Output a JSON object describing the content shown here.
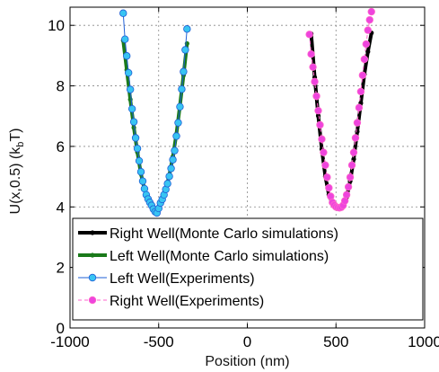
{
  "chart_data": {
    "type": "scatter",
    "xlabel": "Position (nm)",
    "ylabel": "U(x,0.5) (k",
    "ylabel_sub": "b",
    "ylabel_suffix": "T)",
    "xlim": [
      -1000,
      1000
    ],
    "ylim": [
      0,
      10.6
    ],
    "xticks": [
      -1000,
      -500,
      0,
      500,
      1000
    ],
    "xtick_labels": [
      "-1000",
      "-500",
      "0",
      "500",
      "1000"
    ],
    "yticks": [
      0,
      2,
      4,
      6,
      8,
      10
    ],
    "ytick_labels": [
      "0",
      "2",
      "4",
      "6",
      "8",
      "10"
    ],
    "grid": true,
    "legend_position": "bottom-center",
    "series": [
      {
        "name": "Right Well(Monte Carlo simulations)",
        "color": "#000000",
        "style": "line-dot",
        "x": [
          360,
          380,
          400,
          420,
          440,
          460,
          480,
          500,
          520,
          540,
          560,
          580,
          600,
          620,
          640,
          660,
          680,
          700
        ],
        "y": [
          9.72,
          8.28,
          7.01,
          5.91,
          5.01,
          4.4,
          4.12,
          4.0,
          3.95,
          4.01,
          4.32,
          4.85,
          5.58,
          6.49,
          7.43,
          8.38,
          9.13,
          9.75
        ]
      },
      {
        "name": "Left Well(Monte Carlo simulations)",
        "color": "#1a7a1a",
        "style": "line-dot",
        "x": [
          -700,
          -680,
          -660,
          -640,
          -620,
          -600,
          -580,
          -560,
          -540,
          -520,
          -500,
          -480,
          -460,
          -440,
          -420,
          -400,
          -380,
          -360,
          -340
        ],
        "y": [
          9.5,
          8.53,
          7.55,
          6.62,
          5.81,
          5.09,
          4.58,
          4.25,
          4.05,
          3.93,
          4.0,
          4.23,
          4.57,
          5.05,
          5.66,
          6.41,
          7.35,
          8.35,
          9.4
        ]
      },
      {
        "name": "Left Well(Experiments)",
        "color": "#1f5fd6",
        "marker_fill": "#38c4f2",
        "style": "line-circle",
        "x": [
          -700,
          -690,
          -680,
          -670,
          -660,
          -650,
          -640,
          -630,
          -620,
          -610,
          -600,
          -590,
          -580,
          -570,
          -560,
          -550,
          -540,
          -530,
          -520,
          -510,
          -500,
          -490,
          -480,
          -470,
          -460,
          -450,
          -440,
          -430,
          -420,
          -410,
          -400,
          -390,
          -380,
          -370,
          -360,
          -350,
          -340
        ],
        "y": [
          10.4,
          9.54,
          8.99,
          8.43,
          7.88,
          7.24,
          6.81,
          6.28,
          5.93,
          5.52,
          5.16,
          4.85,
          4.6,
          4.4,
          4.26,
          4.15,
          4.05,
          3.93,
          3.84,
          3.8,
          3.95,
          4.13,
          4.25,
          4.4,
          4.58,
          4.77,
          5.01,
          5.27,
          5.56,
          5.86,
          6.34,
          6.78,
          7.31,
          7.89,
          8.47,
          9.19,
          9.88
        ]
      },
      {
        "name": "Right Well(Experiments)",
        "color": "#ff66cc",
        "marker_fill": "#ee44dd",
        "style": "dash-circle",
        "x": [
          350,
          360,
          370,
          380,
          390,
          400,
          410,
          420,
          430,
          440,
          450,
          460,
          470,
          480,
          490,
          500,
          510,
          520,
          530,
          540,
          550,
          560,
          570,
          580,
          590,
          600,
          610,
          620,
          630,
          640,
          650,
          660,
          670,
          680,
          690,
          700
        ],
        "y": [
          9.7,
          9.05,
          8.62,
          8.14,
          7.66,
          7.18,
          6.71,
          6.24,
          5.8,
          5.38,
          4.98,
          4.63,
          4.35,
          4.15,
          4.06,
          4.0,
          3.98,
          3.97,
          3.99,
          4.05,
          4.2,
          4.4,
          4.66,
          4.98,
          5.38,
          5.8,
          6.28,
          6.78,
          7.28,
          7.81,
          8.35,
          8.88,
          9.38,
          9.84,
          10.18,
          10.45
        ]
      }
    ]
  }
}
